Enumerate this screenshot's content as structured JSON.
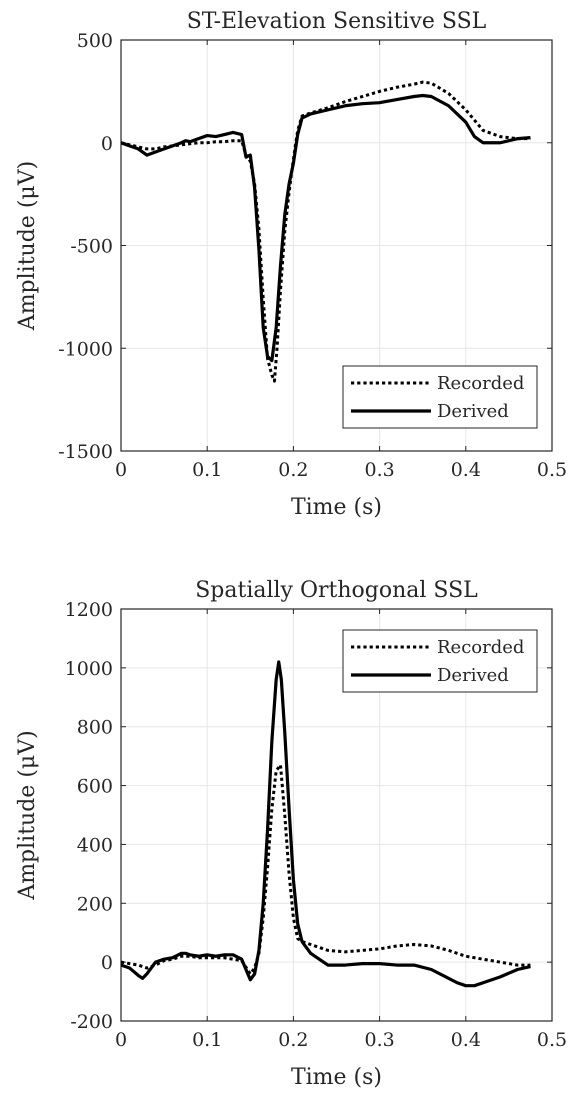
{
  "chart_data": [
    {
      "type": "line",
      "title": "ST-Elevation Sensitive SSL",
      "xlabel": "Time (s)",
      "ylabel": "Amplitude (μV)",
      "xlim": [
        0,
        0.5
      ],
      "ylim": [
        -1500,
        500
      ],
      "xticks": [
        0,
        0.1,
        0.2,
        0.3,
        0.4,
        0.5
      ],
      "xtick_labels": [
        "0",
        "0.1",
        "0.2",
        "0.3",
        "0.4",
        "0.5"
      ],
      "yticks": [
        -1500,
        -1000,
        -500,
        0,
        500
      ],
      "ytick_labels": [
        "-1500",
        "-1000",
        "-500",
        "0",
        "500"
      ],
      "grid": true,
      "legend_position": "bottom-right",
      "series": [
        {
          "name": "Recorded",
          "style": "dotted",
          "color": "#000000",
          "x": [
            0,
            0.01,
            0.02,
            0.03,
            0.04,
            0.05,
            0.06,
            0.07,
            0.08,
            0.09,
            0.1,
            0.11,
            0.12,
            0.13,
            0.14,
            0.145,
            0.15,
            0.155,
            0.16,
            0.165,
            0.17,
            0.175,
            0.178,
            0.181,
            0.185,
            0.19,
            0.195,
            0.2,
            0.205,
            0.21,
            0.22,
            0.24,
            0.26,
            0.28,
            0.3,
            0.32,
            0.34,
            0.35,
            0.36,
            0.38,
            0.4,
            0.42,
            0.44,
            0.46,
            0.475
          ],
          "y": [
            0,
            -10,
            -20,
            -30,
            -30,
            -20,
            -15,
            -10,
            -5,
            0,
            0,
            5,
            5,
            10,
            10,
            -60,
            -90,
            -200,
            -420,
            -760,
            -1050,
            -1130,
            -1160,
            -1000,
            -720,
            -430,
            -240,
            -80,
            60,
            130,
            145,
            170,
            200,
            225,
            250,
            270,
            285,
            295,
            290,
            240,
            160,
            60,
            30,
            20,
            20
          ]
        },
        {
          "name": "Derived",
          "style": "solid",
          "color": "#000000",
          "x": [
            0,
            0.01,
            0.02,
            0.03,
            0.04,
            0.05,
            0.06,
            0.07,
            0.075,
            0.08,
            0.09,
            0.1,
            0.11,
            0.12,
            0.13,
            0.14,
            0.145,
            0.15,
            0.155,
            0.16,
            0.165,
            0.17,
            0.175,
            0.18,
            0.185,
            0.19,
            0.195,
            0.2,
            0.205,
            0.21,
            0.22,
            0.24,
            0.26,
            0.28,
            0.3,
            0.32,
            0.34,
            0.35,
            0.36,
            0.38,
            0.4,
            0.41,
            0.42,
            0.43,
            0.44,
            0.46,
            0.475
          ],
          "y": [
            0,
            -15,
            -30,
            -60,
            -45,
            -30,
            -15,
            0,
            10,
            5,
            20,
            35,
            30,
            40,
            50,
            40,
            -70,
            -60,
            -220,
            -520,
            -900,
            -1040,
            -1060,
            -900,
            -600,
            -350,
            -200,
            -100,
            40,
            120,
            140,
            160,
            180,
            190,
            195,
            210,
            225,
            230,
            225,
            180,
            100,
            30,
            0,
            0,
            0,
            20,
            25
          ]
        }
      ]
    },
    {
      "type": "line",
      "title": "Spatially Orthogonal SSL",
      "xlabel": "Time (s)",
      "ylabel": "Amplitude (μV)",
      "xlim": [
        0,
        0.5
      ],
      "ylim": [
        -200,
        1200
      ],
      "xticks": [
        0,
        0.1,
        0.2,
        0.3,
        0.4,
        0.5
      ],
      "xtick_labels": [
        "0",
        "0.1",
        "0.2",
        "0.3",
        "0.4",
        "0.5"
      ],
      "yticks": [
        -200,
        0,
        200,
        400,
        600,
        800,
        1000,
        1200
      ],
      "ytick_labels": [
        "-200",
        "0",
        "200",
        "400",
        "600",
        "800",
        "1000",
        "1200"
      ],
      "grid": true,
      "legend_position": "top-right",
      "series": [
        {
          "name": "Recorded",
          "style": "dotted",
          "color": "#000000",
          "x": [
            0,
            0.01,
            0.02,
            0.03,
            0.04,
            0.05,
            0.06,
            0.07,
            0.08,
            0.09,
            0.1,
            0.11,
            0.12,
            0.13,
            0.14,
            0.15,
            0.155,
            0.16,
            0.165,
            0.17,
            0.175,
            0.18,
            0.185,
            0.19,
            0.195,
            0.2,
            0.205,
            0.21,
            0.22,
            0.24,
            0.26,
            0.28,
            0.3,
            0.32,
            0.34,
            0.36,
            0.38,
            0.4,
            0.42,
            0.44,
            0.46,
            0.475
          ],
          "y": [
            0,
            -5,
            -10,
            -20,
            -10,
            5,
            10,
            20,
            20,
            15,
            15,
            15,
            15,
            10,
            5,
            -40,
            -20,
            30,
            150,
            320,
            520,
            650,
            670,
            500,
            300,
            150,
            80,
            70,
            60,
            40,
            35,
            40,
            45,
            55,
            60,
            55,
            40,
            20,
            10,
            0,
            -10,
            -10
          ]
        },
        {
          "name": "Derived",
          "style": "solid",
          "color": "#000000",
          "x": [
            0,
            0.01,
            0.02,
            0.025,
            0.03,
            0.04,
            0.05,
            0.06,
            0.07,
            0.075,
            0.08,
            0.09,
            0.1,
            0.11,
            0.12,
            0.13,
            0.14,
            0.15,
            0.155,
            0.16,
            0.165,
            0.17,
            0.175,
            0.18,
            0.183,
            0.186,
            0.19,
            0.195,
            0.2,
            0.205,
            0.21,
            0.22,
            0.24,
            0.26,
            0.28,
            0.3,
            0.32,
            0.34,
            0.36,
            0.38,
            0.39,
            0.4,
            0.41,
            0.42,
            0.44,
            0.46,
            0.475
          ],
          "y": [
            -10,
            -20,
            -45,
            -55,
            -40,
            0,
            10,
            15,
            30,
            30,
            25,
            20,
            25,
            20,
            25,
            25,
            10,
            -60,
            -40,
            40,
            200,
            450,
            750,
            960,
            1020,
            960,
            780,
            520,
            280,
            130,
            70,
            30,
            -10,
            -10,
            -5,
            -5,
            -10,
            -10,
            -25,
            -55,
            -70,
            -80,
            -80,
            -70,
            -50,
            -25,
            -15
          ]
        }
      ]
    }
  ]
}
